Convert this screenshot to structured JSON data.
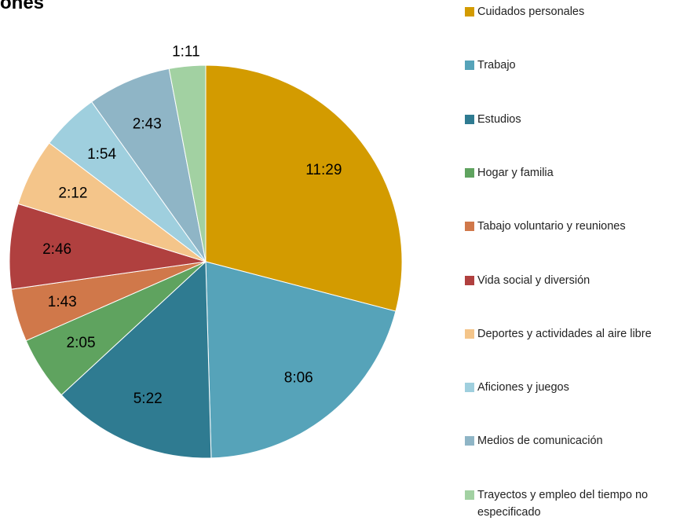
{
  "chart_data": {
    "type": "pie",
    "title": "ones",
    "categories": [
      "Cuidados personales",
      "Trabajo",
      "Estudios",
      "Hogar y familia",
      "Tabajo voluntario y reuniones",
      "Vida social y diversión",
      "Deportes y actividades al aire libre",
      "Aficiones y juegos",
      "Medios de comunicación",
      "Trayectos y empleo del tiempo no especificado"
    ],
    "values": [
      689,
      486,
      322,
      125,
      103,
      166,
      132,
      114,
      163,
      71
    ],
    "value_labels": [
      "11:29",
      "8:06",
      "5:22",
      "2:05",
      "1:43",
      "2:46",
      "2:12",
      "1:54",
      "2:43",
      "1:11"
    ],
    "colors": [
      "#d39b00",
      "#56a3b9",
      "#2f7b91",
      "#5fa35f",
      "#d0784a",
      "#b0403f",
      "#f4c58a",
      "#9fcfde",
      "#8fb5c6",
      "#a2d1a2"
    ],
    "legend": "right"
  }
}
